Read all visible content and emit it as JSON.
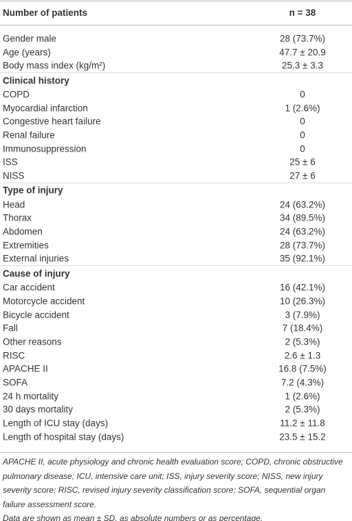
{
  "table": {
    "header": [
      "Number of patients",
      "n = 38"
    ],
    "rows": [
      [
        "Gender male",
        "28 (73.7%)"
      ],
      [
        "Age (years)",
        "47.7 ± 20.9"
      ],
      [
        "Body mass index (kg/m²)",
        "25.3 ± 3.3"
      ],
      [
        "Clinical history"
      ],
      [
        "COPD",
        "0"
      ],
      [
        "Myocardial infarction",
        "1 (2.6%)"
      ],
      [
        "Congestive heart failure",
        "0"
      ],
      [
        "Renal failure",
        "0"
      ],
      [
        "Immunosuppression",
        "0"
      ],
      [
        "ISS",
        "25 ± 6"
      ],
      [
        "NISS",
        "27 ± 6"
      ],
      [
        "Type of injury"
      ],
      [
        "Head",
        "24 (63.2%)"
      ],
      [
        "Thorax",
        "34 (89.5%)"
      ],
      [
        "Abdomen",
        "24 (63.2%)"
      ],
      [
        "Extremities",
        "28 (73.7%)"
      ],
      [
        "External injuries",
        "35 (92.1%)"
      ],
      [
        "Cause of injury"
      ],
      [
        "Car accident",
        "16 (42.1%)"
      ],
      [
        "Motorcycle accident",
        "10 (26.3%)"
      ],
      [
        "Bicycle accident",
        "3 (7.9%)"
      ],
      [
        "Fall",
        "7 (18.4%)"
      ],
      [
        "Other reasons",
        "2 (5.3%)"
      ],
      [
        "RISC",
        "2.6 ± 1.3"
      ],
      [
        "APACHE II",
        "16.8 (7.5%)"
      ],
      [
        "SOFA",
        "7.2 (4.3%)"
      ],
      [
        "24 h mortality",
        "1 (2.6%)"
      ],
      [
        "30 days mortality",
        "2 (5.3%)"
      ],
      [
        "Length of ICU stay (days)",
        "11.2 ± 11.8"
      ],
      [
        "Length of hospital stay (days)",
        "23.5 ± 15.2"
      ]
    ]
  },
  "footnote": [
    "APACHE II, acute physiology and chronic health evaluation score; COPD, chronic obstructive pulmonary disease; ICU, intensive care unit; ISS, injury severity score; NISS, new injury severity score; RISC, revised injury severity classification score; SOFA, sequential organ failure assessment score.",
    "Data are shown as mean ± SD, as absolute numbers or as percentage."
  ]
}
